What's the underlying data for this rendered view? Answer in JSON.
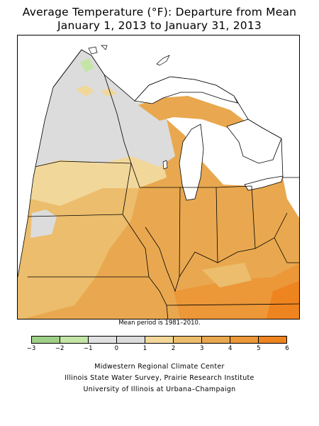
{
  "title_line1": "Average Temperature (°F): Departure from Mean",
  "title_line2": "January 1, 2013 to January 31, 2013",
  "mean_period_note": "Mean period is 1981–2010.",
  "legend": {
    "ticks": [
      "−3",
      "−2",
      "−1",
      "0",
      "1",
      "2",
      "3",
      "4",
      "5",
      "6"
    ],
    "bins": [
      {
        "range": [
          -3,
          -2
        ],
        "color": "#9ecf86"
      },
      {
        "range": [
          -2,
          -1
        ],
        "color": "#c3e6a6"
      },
      {
        "range": [
          -1,
          0
        ],
        "color": "#e0e0e0"
      },
      {
        "range": [
          0,
          1
        ],
        "color": "#dcdcdc"
      },
      {
        "range": [
          1,
          2
        ],
        "color": "#f2d79a"
      },
      {
        "range": [
          2,
          3
        ],
        "color": "#ebbd6c"
      },
      {
        "range": [
          3,
          4
        ],
        "color": "#e9a84f"
      },
      {
        "range": [
          4,
          5
        ],
        "color": "#ec9738"
      },
      {
        "range": [
          5,
          6
        ],
        "color": "#ee8420"
      }
    ]
  },
  "credits": [
    "Midwestern Regional Climate Center",
    "Illinois State Water Survey, Prairie Research Institute",
    "University of Illinois at Urbana–Champaign"
  ]
}
